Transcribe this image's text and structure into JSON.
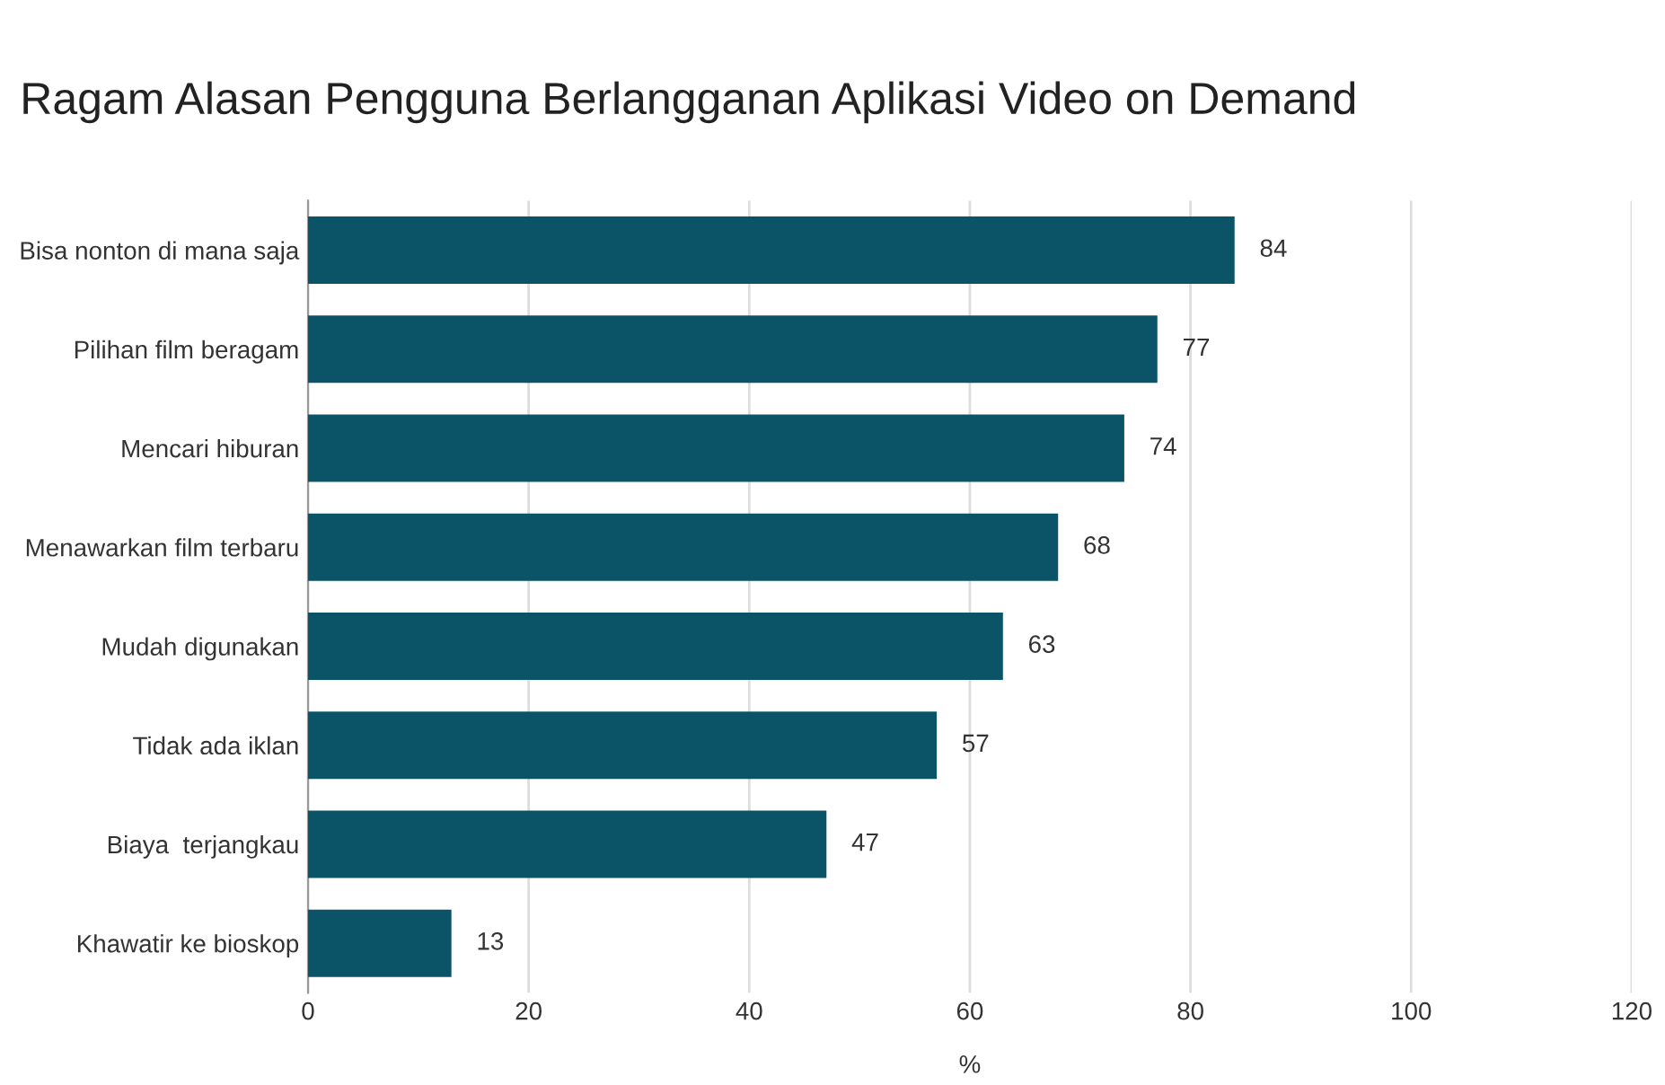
{
  "chart_data": {
    "type": "bar",
    "orientation": "horizontal",
    "title": "Ragam Alasan Pengguna Berlangganan Aplikasi Video on Demand",
    "xlabel": "%",
    "categories": [
      "Bisa nonton di mana saja",
      "Pilihan film beragam",
      "Mencari hiburan",
      "Menawarkan film terbaru",
      "Mudah digunakan",
      "Tidak ada iklan",
      "Biaya  terjangkau",
      "Khawatir ke bioskop"
    ],
    "values": [
      84,
      77,
      74,
      68,
      63,
      57,
      47,
      13
    ],
    "color": "#0b5468",
    "xlim": [
      0,
      120
    ],
    "xticks": [
      0,
      20,
      40,
      60,
      80,
      100,
      120
    ],
    "grid": "x",
    "data_labels": true,
    "legend": false
  }
}
